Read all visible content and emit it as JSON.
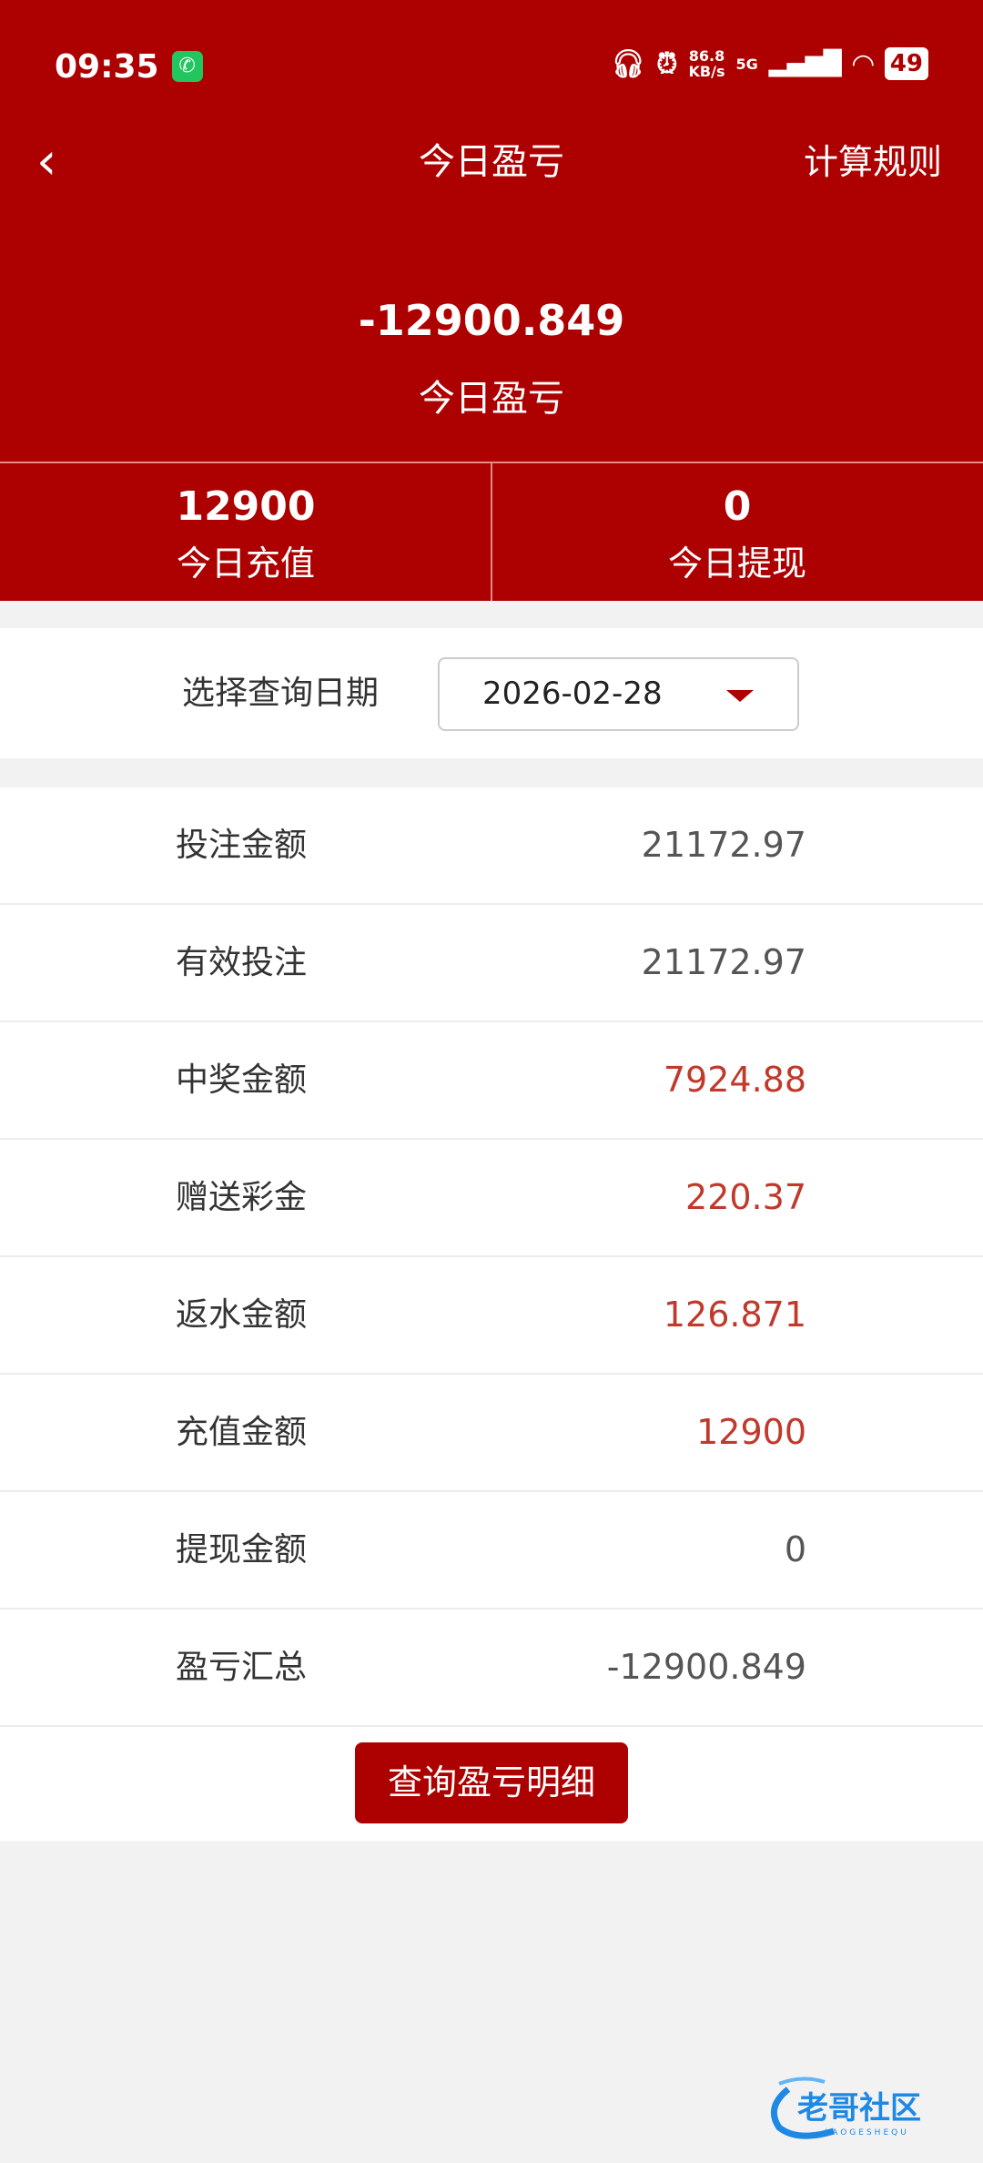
{
  "status_bar": {
    "time": "09:35",
    "net_speed": "86.8",
    "net_unit": "KB/s",
    "network": "5G",
    "battery": "49"
  },
  "nav": {
    "title": "今日盈亏",
    "rule_link": "计算规则"
  },
  "summary": {
    "value": "-12900.849",
    "label": "今日盈亏"
  },
  "stats": [
    {
      "value": "12900",
      "label": "今日充值"
    },
    {
      "value": "0",
      "label": "今日提现"
    }
  ],
  "date_filter": {
    "label": "选择查询日期",
    "value": "2026-02-28"
  },
  "rows": [
    {
      "label": "投注金额",
      "value": "21172.97",
      "highlight": false
    },
    {
      "label": "有效投注",
      "value": "21172.97",
      "highlight": false
    },
    {
      "label": "中奖金额",
      "value": "7924.88",
      "highlight": true
    },
    {
      "label": "赠送彩金",
      "value": "220.37",
      "highlight": true
    },
    {
      "label": "返水金额",
      "value": "126.871",
      "highlight": true
    },
    {
      "label": "充值金额",
      "value": "12900",
      "highlight": true
    },
    {
      "label": "提现金额",
      "value": "0",
      "highlight": false
    },
    {
      "label": "盈亏汇总",
      "value": "-12900.849",
      "highlight": false
    }
  ],
  "detail_button": "查询盈亏明细",
  "watermark": {
    "text": "老哥社区",
    "sub": "LAOGESHEQU"
  },
  "colors": {
    "brand": "#ad0000",
    "highlight": "#c0392b",
    "logo": "#1e88e5"
  }
}
